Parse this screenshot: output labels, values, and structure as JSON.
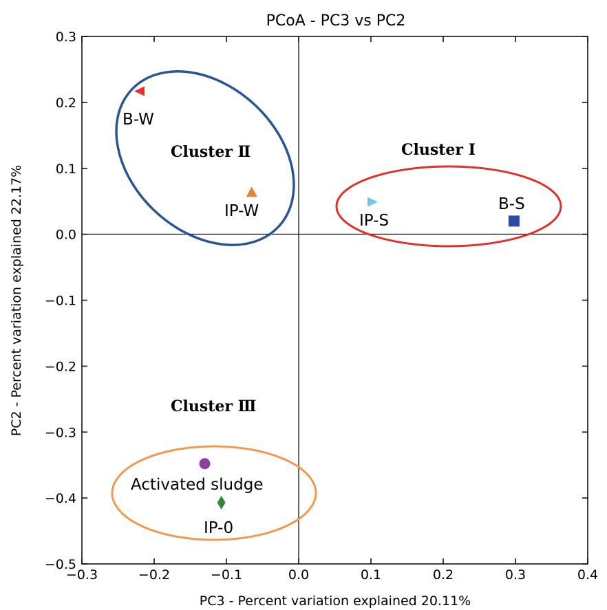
{
  "chart_data": {
    "type": "scatter",
    "title": "PCoA - PC3 vs PC2",
    "xlabel": "PC3 - Percent variation explained 20.11%",
    "ylabel": "PC2 - Percent variation explained 22.17%",
    "xlim": [
      -0.3,
      0.4
    ],
    "ylim": [
      -0.5,
      0.3
    ],
    "xticks": [
      "−0.3",
      "−0.2",
      "−0.1",
      "0.0",
      "0.1",
      "0.2",
      "0.3",
      "0.4"
    ],
    "yticks": [
      "0.3",
      "0.2",
      "0.1",
      "0.0",
      "−0.1",
      "−0.2",
      "−0.3",
      "−0.4",
      "−0.5"
    ],
    "zero_lines": true,
    "points": [
      {
        "label": "B-W",
        "x": -0.22,
        "y": 0.217,
        "marker": "triangle-left",
        "color": "#e8302a"
      },
      {
        "label": "IP-W",
        "x": -0.065,
        "y": 0.063,
        "marker": "triangle-up",
        "color": "#e8862f"
      },
      {
        "label": "IP-S",
        "x": 0.102,
        "y": 0.049,
        "marker": "triangle-right",
        "color": "#76c4e6"
      },
      {
        "label": "B-S",
        "x": 0.298,
        "y": 0.02,
        "marker": "square",
        "color": "#2f4aa6"
      },
      {
        "label": "Activated sludge",
        "x": -0.13,
        "y": -0.348,
        "marker": "circle",
        "color": "#8f3fa0"
      },
      {
        "label": "IP-0",
        "x": -0.107,
        "y": -0.407,
        "marker": "diamond",
        "color": "#2f8b3b"
      }
    ],
    "clusters": [
      {
        "label": "Cluster Ⅱ",
        "color": "#2a5592"
      },
      {
        "label": "Cluster Ⅰ",
        "color": "#e0302b"
      },
      {
        "label": "Cluster Ⅲ",
        "color": "#ef9a4f"
      }
    ]
  }
}
